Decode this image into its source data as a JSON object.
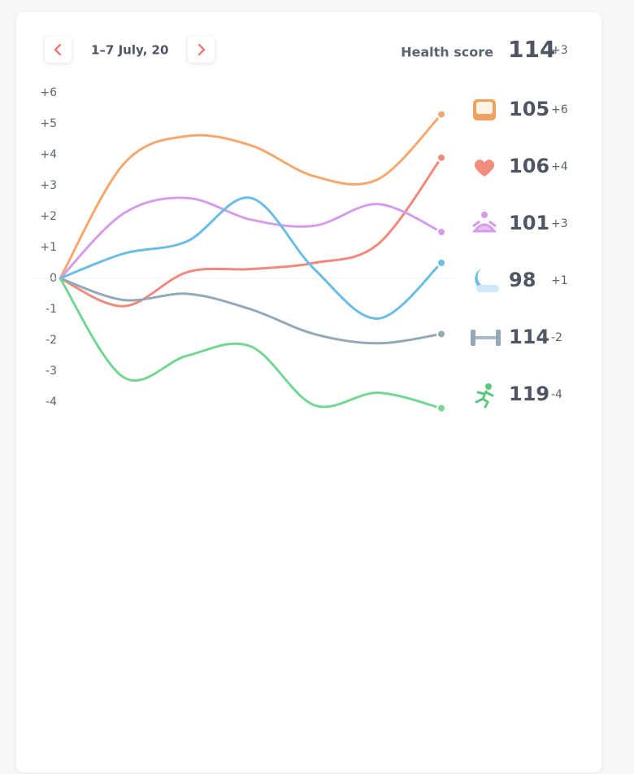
{
  "header": {
    "date_range": "1–7 July, 20",
    "score_label": "Health score",
    "score": 114,
    "score_change": {
      "value": 3,
      "label": "+3"
    }
  },
  "chart_data": {
    "type": "line",
    "categories": [
      null,
      null,
      null,
      null,
      null,
      null,
      null
    ],
    "ylim": [
      -4,
      6
    ],
    "yticks": [
      {
        "value": 6,
        "label": "+6"
      },
      {
        "value": 5,
        "label": "+5"
      },
      {
        "value": 4,
        "label": "+4"
      },
      {
        "value": 3,
        "label": "+3"
      },
      {
        "value": 2,
        "label": "+2"
      },
      {
        "value": 1,
        "label": "+1"
      },
      0,
      -1,
      -2,
      -3,
      -4
    ],
    "series": [
      {
        "color": "#f5a86d",
        "values": [
          0,
          3.7,
          4.6,
          4.3,
          3.3,
          3.2,
          5.3
        ],
        "score": 105,
        "change": {
          "value": 6,
          "label": "+6"
        }
      },
      {
        "color": "#ef8a7c",
        "values": [
          0,
          -0.9,
          0.2,
          0.3,
          0.5,
          1.1,
          3.9
        ],
        "score": 106,
        "change": {
          "value": 4,
          "label": "+4"
        }
      },
      {
        "color": "#d79ce8",
        "values": [
          0,
          2.1,
          2.6,
          1.9,
          1.7,
          2.4,
          1.5
        ],
        "score": 101,
        "change": {
          "value": 3,
          "label": "+3"
        }
      },
      {
        "color": "#6bbde6",
        "values": [
          0,
          0.8,
          1.2,
          2.6,
          0.3,
          -1.3,
          0.5
        ],
        "score": 98,
        "change": {
          "value": 1,
          "label": "+1"
        }
      },
      {
        "color": "#93a9b8",
        "values": [
          0,
          -0.7,
          -0.5,
          -1.0,
          -1.8,
          -2.1,
          -1.8
        ],
        "score": 114,
        "change": -2
      },
      {
        "color": "#74d693",
        "values": [
          0,
          -3.2,
          -2.5,
          -2.2,
          -4.1,
          -3.7,
          -4.2
        ],
        "score": 119,
        "change": -4
      }
    ]
  }
}
